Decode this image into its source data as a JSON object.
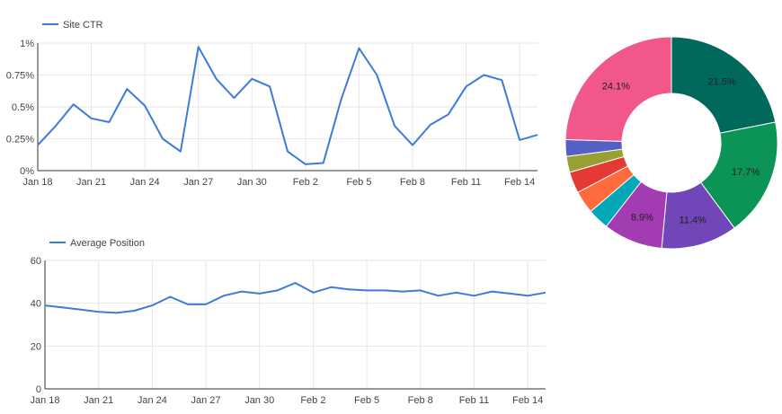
{
  "colors": {
    "series": "#3d7bd9",
    "grid": "#e6e6e6",
    "axis": "#333333",
    "text": "#444444",
    "slice_label": "#222222"
  },
  "chart_data": [
    {
      "type": "line",
      "legend": [
        "Site CTR"
      ],
      "legend_position": "top-left",
      "grid": true,
      "x": [
        "Jan 18",
        "Jan 19",
        "Jan 20",
        "Jan 21",
        "Jan 22",
        "Jan 23",
        "Jan 24",
        "Jan 25",
        "Jan 26",
        "Jan 27",
        "Jan 28",
        "Jan 29",
        "Jan 30",
        "Jan 31",
        "Feb 1",
        "Feb 2",
        "Feb 3",
        "Feb 4",
        "Feb 5",
        "Feb 6",
        "Feb 7",
        "Feb 8",
        "Feb 9",
        "Feb 10",
        "Feb 11",
        "Feb 12",
        "Feb 13",
        "Feb 14",
        "Feb 15"
      ],
      "x_ticks": [
        "Jan 18",
        "Jan 21",
        "Jan 24",
        "Jan 27",
        "Jan 30",
        "Feb 2",
        "Feb 5",
        "Feb 8",
        "Feb 11",
        "Feb 14"
      ],
      "series": [
        {
          "name": "Site CTR",
          "values": [
            0.2,
            0.35,
            0.52,
            0.41,
            0.38,
            0.64,
            0.51,
            0.25,
            0.15,
            0.97,
            0.72,
            0.57,
            0.72,
            0.66,
            0.15,
            0.05,
            0.06,
            0.56,
            0.96,
            0.75,
            0.35,
            0.2,
            0.36,
            0.44,
            0.66,
            0.75,
            0.71,
            0.24,
            0.28
          ]
        }
      ],
      "y_ticks": [
        "0%",
        "0.25%",
        "0.5%",
        "0.75%",
        "1%"
      ],
      "ylim": [
        0,
        1
      ]
    },
    {
      "type": "pie",
      "style": "donut",
      "slices": [
        {
          "value": 21.5,
          "label": "21.5%",
          "color": "#00695c"
        },
        {
          "value": 17.7,
          "label": "17.7%",
          "color": "#0b9455"
        },
        {
          "value": 11.4,
          "label": "11.4%",
          "color": "#7046b8"
        },
        {
          "value": 8.9,
          "label": "8.9%",
          "color": "#a33bb3"
        },
        {
          "value": 3.2,
          "label": "",
          "color": "#00a8b8"
        },
        {
          "value": 3.4,
          "label": "",
          "color": "#ff6b3d"
        },
        {
          "value": 3.2,
          "label": "",
          "color": "#e53935"
        },
        {
          "value": 2.4,
          "label": "",
          "color": "#99a033"
        },
        {
          "value": 2.5,
          "label": "",
          "color": "#5660c4"
        },
        {
          "value": 24.1,
          "label": "24.1%",
          "color": "#f2578a"
        }
      ]
    },
    {
      "type": "line",
      "legend": [
        "Average Position"
      ],
      "legend_position": "top-left",
      "grid": true,
      "x": [
        "Jan 18",
        "Jan 19",
        "Jan 20",
        "Jan 21",
        "Jan 22",
        "Jan 23",
        "Jan 24",
        "Jan 25",
        "Jan 26",
        "Jan 27",
        "Jan 28",
        "Jan 29",
        "Jan 30",
        "Jan 31",
        "Feb 1",
        "Feb 2",
        "Feb 3",
        "Feb 4",
        "Feb 5",
        "Feb 6",
        "Feb 7",
        "Feb 8",
        "Feb 9",
        "Feb 10",
        "Feb 11",
        "Feb 12",
        "Feb 13",
        "Feb 14",
        "Feb 15"
      ],
      "x_ticks": [
        "Jan 18",
        "Jan 21",
        "Jan 24",
        "Jan 27",
        "Jan 30",
        "Feb 2",
        "Feb 5",
        "Feb 8",
        "Feb 11",
        "Feb 14"
      ],
      "series": [
        {
          "name": "Average Position",
          "values": [
            39,
            38,
            37,
            36,
            35.5,
            36.5,
            39,
            43,
            39.5,
            39.5,
            43.5,
            45.5,
            44.5,
            46,
            49.5,
            45,
            47.5,
            46.5,
            46,
            46,
            45.5,
            46,
            43.5,
            45,
            43.5,
            45.5,
            44.5,
            43.5,
            45
          ]
        }
      ],
      "y_ticks": [
        "0",
        "20",
        "40",
        "60"
      ],
      "ylim": [
        0,
        60
      ]
    }
  ]
}
